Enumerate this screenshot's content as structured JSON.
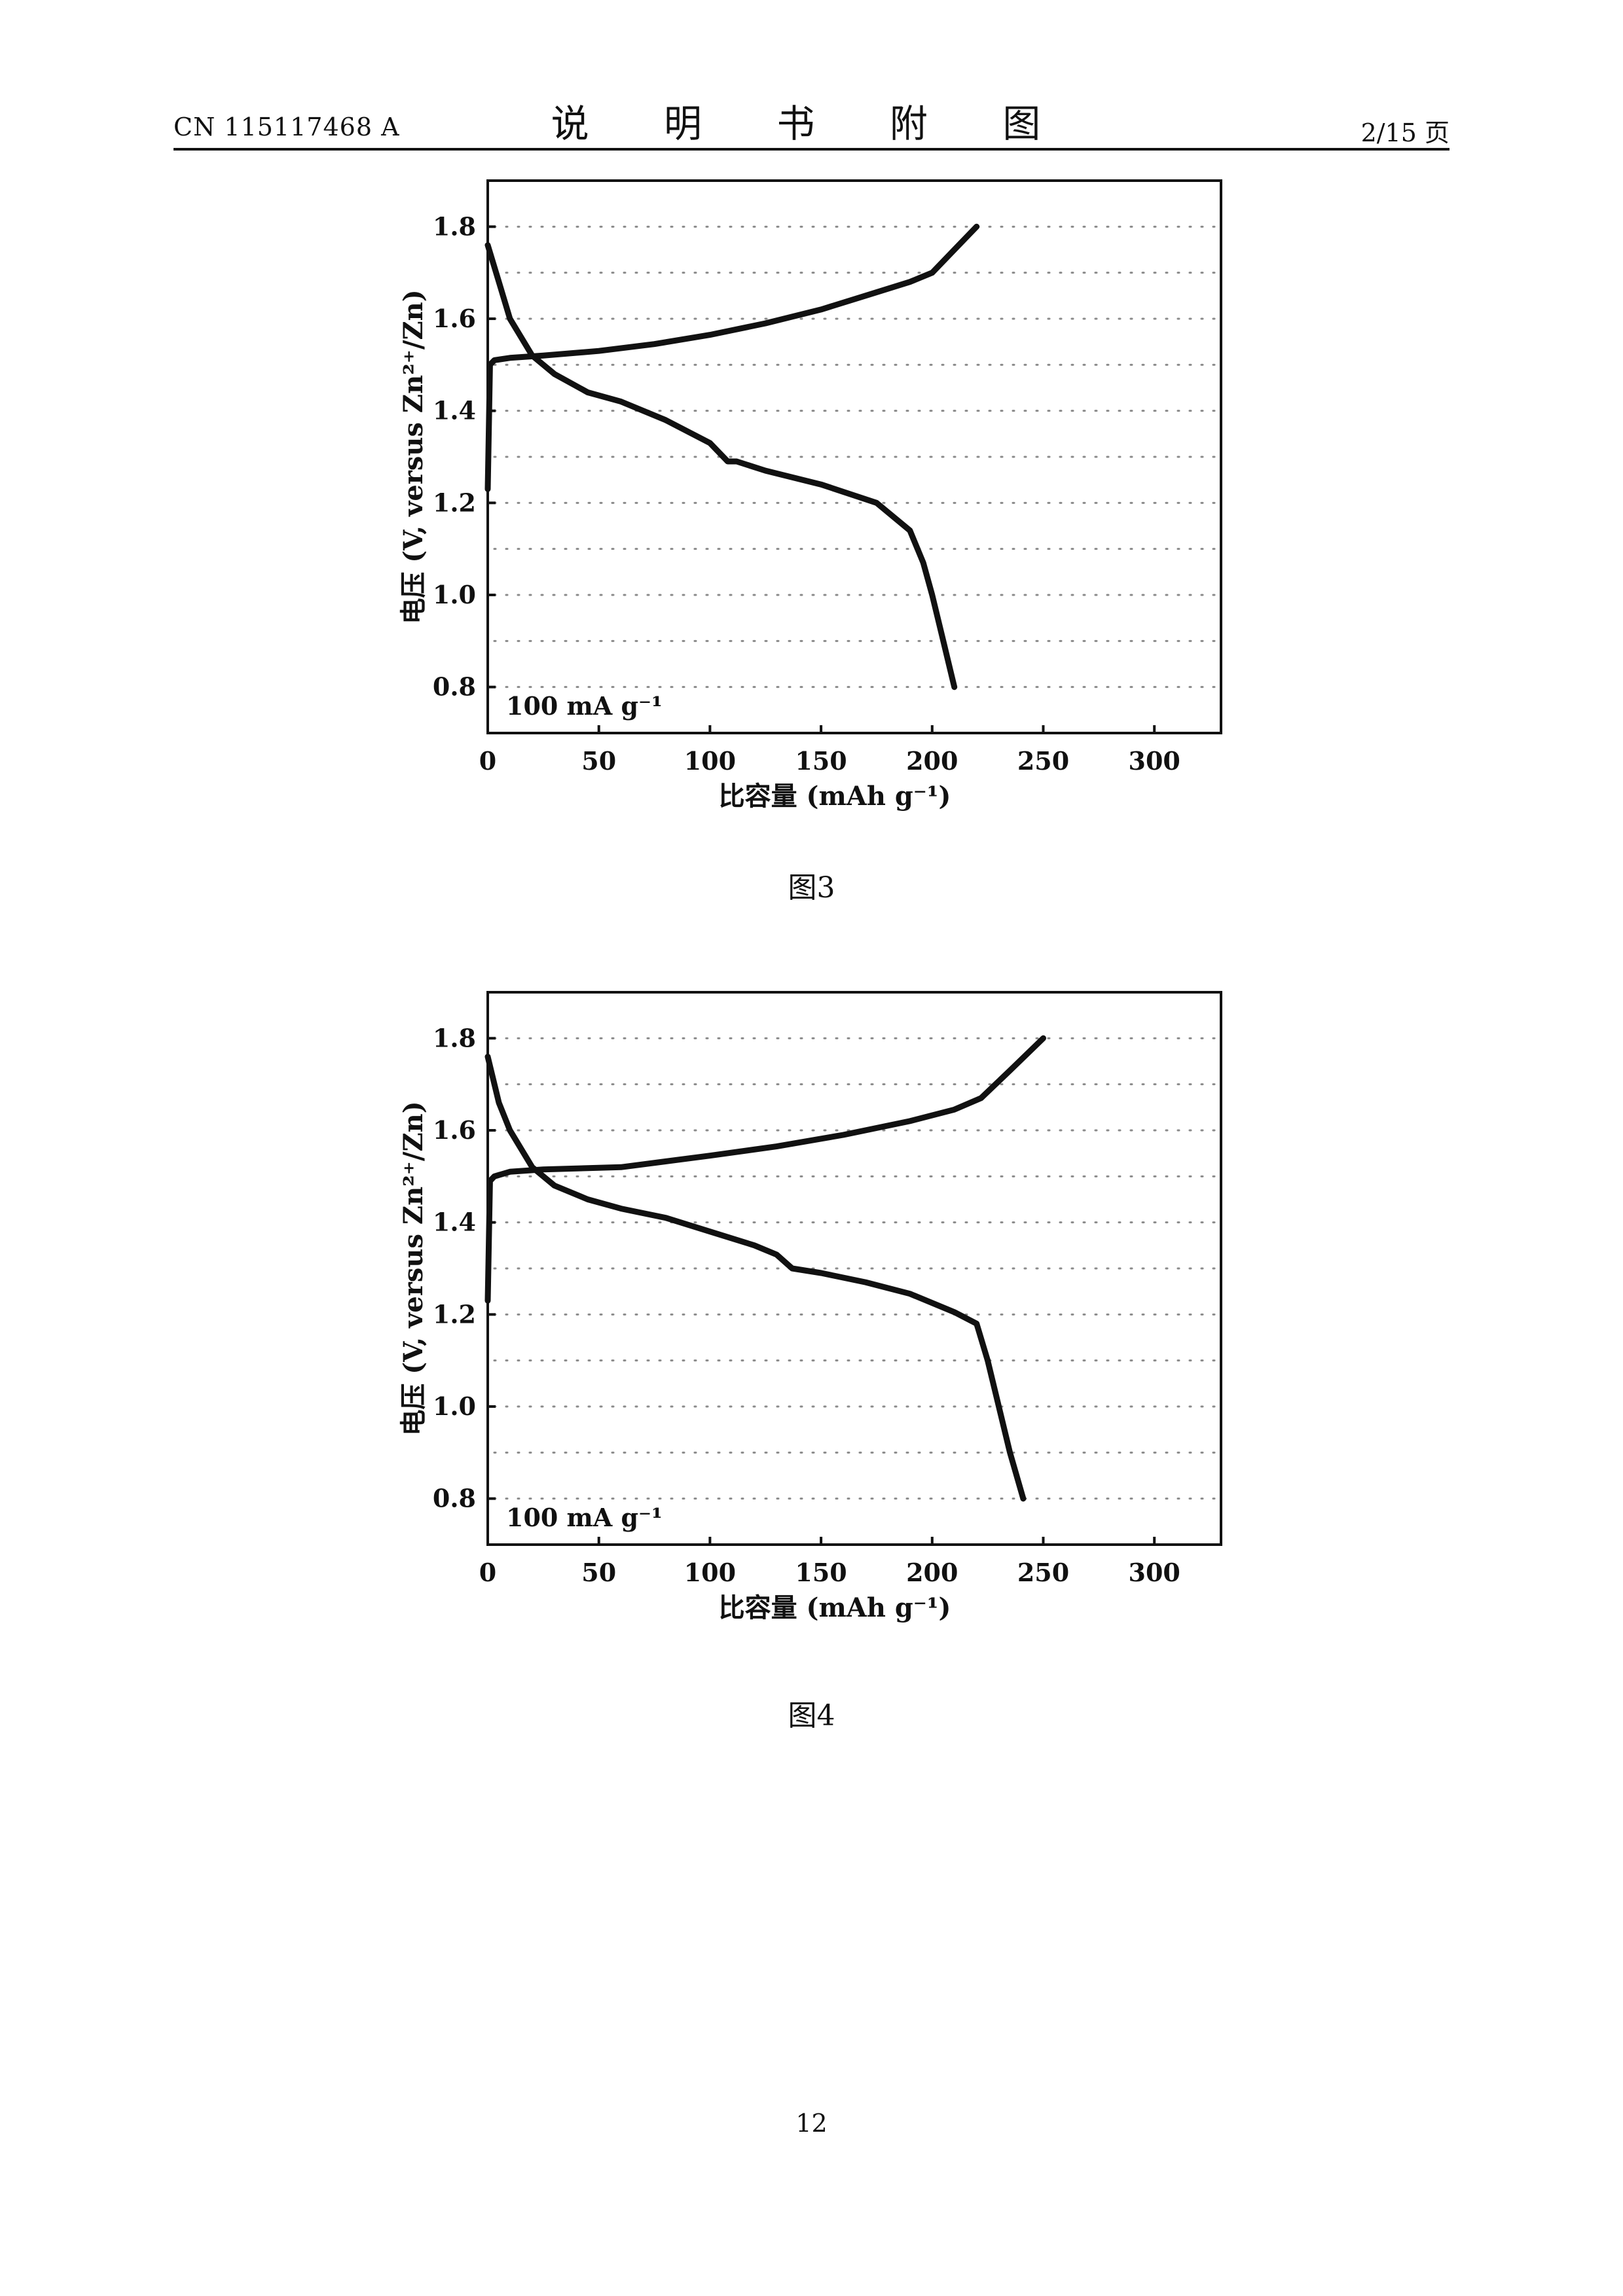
{
  "header": {
    "doc_number": "CN 115117468 A",
    "title": "说 明 书 附 图",
    "page_of": "2/15 页"
  },
  "figures": [
    {
      "caption": "图3",
      "chart_data": {
        "type": "line",
        "xlabel": "比容量 (mAh g⁻¹)",
        "ylabel": "电压 (V, versus Zn²⁺/Zn)",
        "xlim": [
          0,
          330
        ],
        "ylim": [
          0.7,
          1.9
        ],
        "xticks": [
          0,
          50,
          100,
          150,
          200,
          250,
          300
        ],
        "yticks": [
          0.8,
          1.0,
          1.2,
          1.4,
          1.6,
          1.8
        ],
        "grid": "dotted horizontal",
        "annotation": "100 mA g⁻¹",
        "series": [
          {
            "x": [
              0,
              1,
              3,
              10,
              25,
              50,
              75,
              100,
              125,
              150,
              170,
              190,
              200,
              210,
              220
            ],
            "y": [
              1.23,
              1.5,
              1.51,
              1.515,
              1.52,
              1.53,
              1.545,
              1.565,
              1.59,
              1.62,
              1.65,
              1.68,
              1.7,
              1.75,
              1.8
            ]
          },
          {
            "x": [
              0,
              5,
              10,
              20,
              30,
              45,
              60,
              80,
              100,
              108,
              112,
              125,
              150,
              175,
              190,
              196,
              200,
              205,
              210
            ],
            "y": [
              1.76,
              1.68,
              1.6,
              1.52,
              1.48,
              1.44,
              1.42,
              1.38,
              1.33,
              1.29,
              1.29,
              1.27,
              1.24,
              1.2,
              1.14,
              1.07,
              1.0,
              0.9,
              0.8
            ]
          }
        ]
      }
    },
    {
      "caption": "图4",
      "chart_data": {
        "type": "line",
        "xlabel": "比容量 (mAh g⁻¹)",
        "ylabel": "电压 (V, versus Zn²⁺/Zn)",
        "xlim": [
          0,
          330
        ],
        "ylim": [
          0.7,
          1.9
        ],
        "xticks": [
          0,
          50,
          100,
          150,
          200,
          250,
          300
        ],
        "yticks": [
          0.8,
          1.0,
          1.2,
          1.4,
          1.6,
          1.8
        ],
        "grid": "dotted horizontal",
        "annotation": "100 mA g⁻¹",
        "series": [
          {
            "x": [
              0,
              1,
              3,
              10,
              25,
              60,
              100,
              130,
              160,
              190,
              210,
              222,
              235,
              250
            ],
            "y": [
              1.23,
              1.49,
              1.5,
              1.51,
              1.515,
              1.52,
              1.545,
              1.565,
              1.59,
              1.62,
              1.645,
              1.67,
              1.73,
              1.8
            ]
          },
          {
            "x": [
              0,
              5,
              10,
              20,
              30,
              45,
              60,
              80,
              100,
              120,
              130,
              137,
              150,
              170,
              190,
              210,
              220,
              225,
              230,
              235,
              241
            ],
            "y": [
              1.76,
              1.66,
              1.6,
              1.52,
              1.48,
              1.45,
              1.43,
              1.41,
              1.38,
              1.35,
              1.33,
              1.3,
              1.29,
              1.27,
              1.245,
              1.205,
              1.18,
              1.1,
              1.0,
              0.9,
              0.8
            ]
          }
        ]
      }
    }
  ],
  "page_number": "12"
}
